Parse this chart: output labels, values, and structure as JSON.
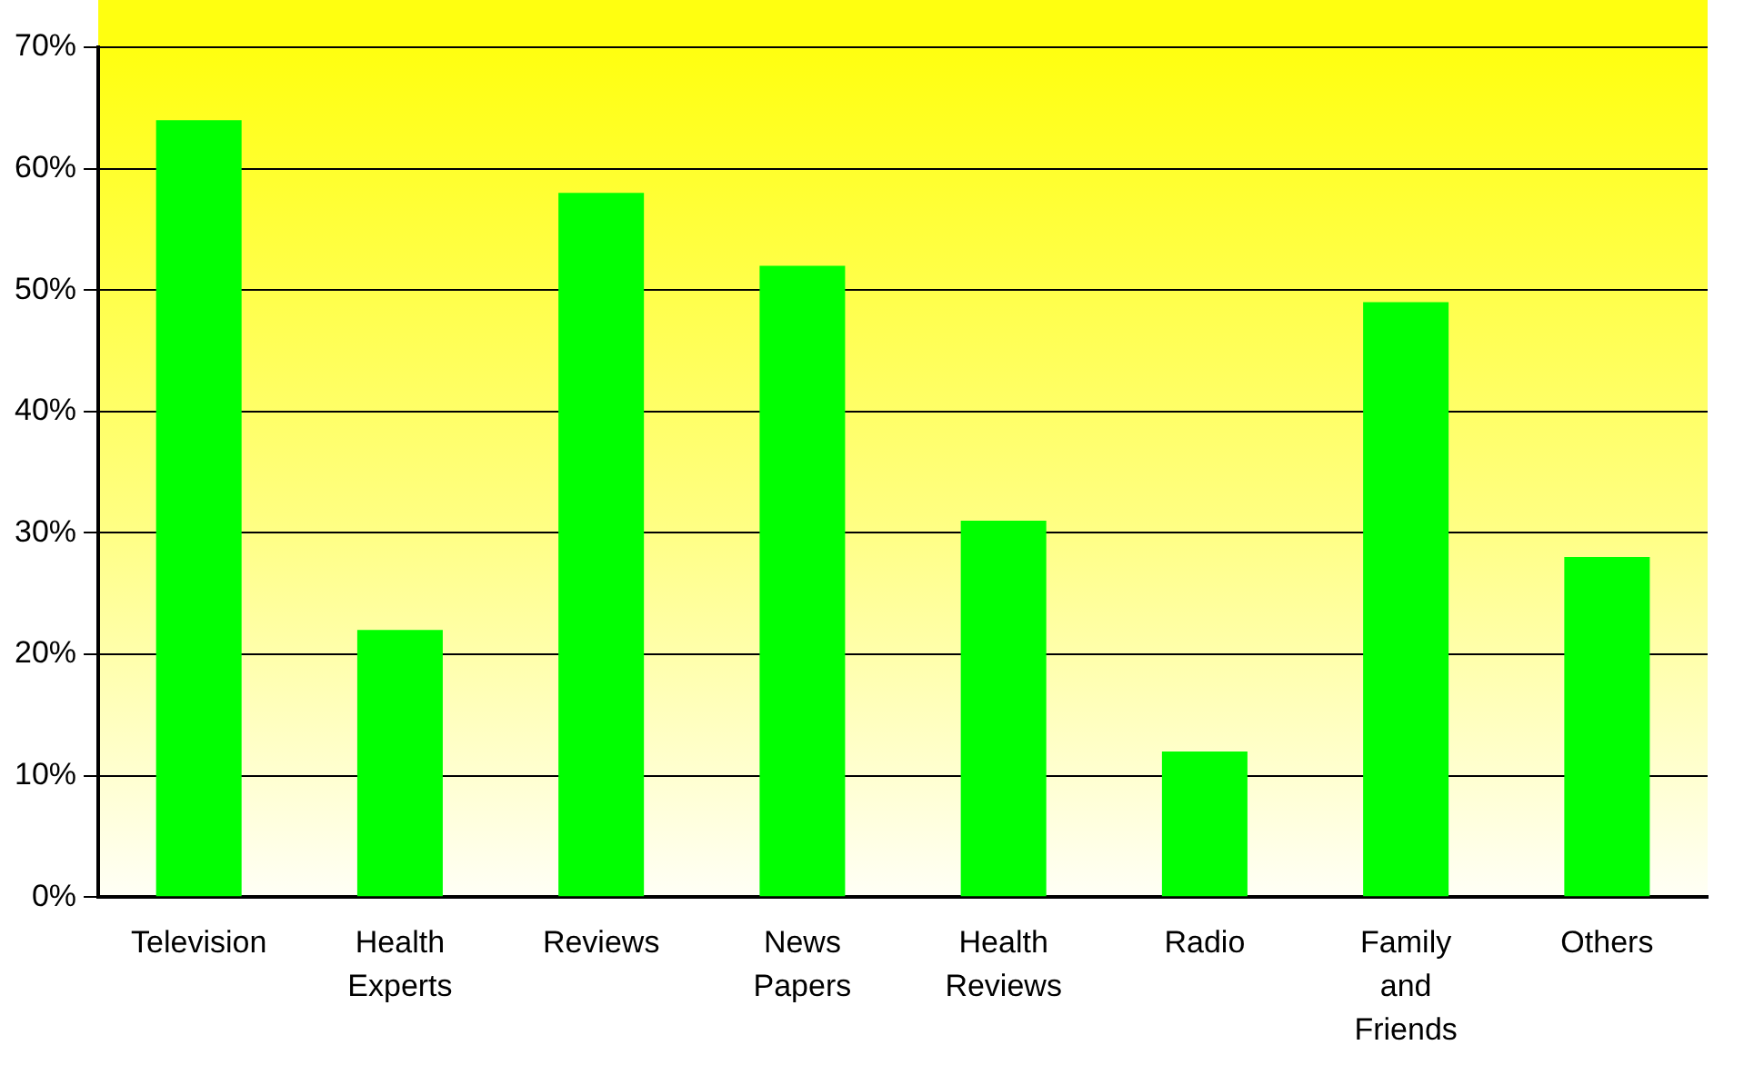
{
  "chart_data": {
    "type": "bar",
    "categories": [
      "Television",
      "Health Experts",
      "Reviews",
      "News Papers",
      "Health Reviews",
      "Radio",
      "Family and Friends",
      "Others"
    ],
    "values": [
      64,
      22,
      58,
      52,
      31,
      12,
      49,
      28
    ],
    "color": "#00ff00",
    "ylim": [
      0,
      70
    ],
    "yticks": [
      {
        "value": 0,
        "label": "0%"
      },
      {
        "value": 10,
        "label": "10%"
      },
      {
        "value": 20,
        "label": "20%"
      },
      {
        "value": 30,
        "label": "30%"
      },
      {
        "value": 40,
        "label": "40%"
      },
      {
        "value": 50,
        "label": "50%"
      },
      {
        "value": 60,
        "label": "60%"
      },
      {
        "value": 70,
        "label": "70%"
      }
    ],
    "grid": "y"
  }
}
